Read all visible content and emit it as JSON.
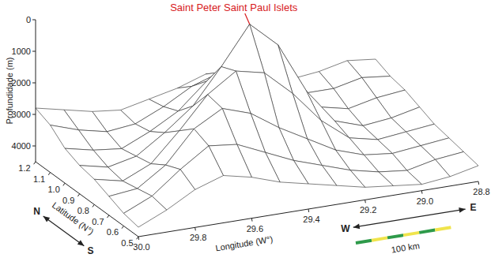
{
  "chart_data": {
    "type": "surface",
    "x_label": "Longitude (W°)",
    "y_label": "Latitude (N°)",
    "z_label": "Profundidade (m)",
    "x": [
      30,
      29.9,
      29.8,
      29.7,
      29.6,
      29.5,
      29.4,
      29.3,
      29.2,
      29.1,
      29,
      28.9,
      28.8
    ],
    "y": [
      0.5,
      0.6,
      0.7,
      0.8,
      0.9,
      1.0,
      1.1,
      1.2
    ],
    "z": [
      [
        4200,
        3800,
        3300,
        3000,
        3200,
        3500,
        3700,
        3900,
        4100,
        4200,
        4300,
        4200,
        4000
      ],
      [
        4100,
        3700,
        3000,
        2400,
        2500,
        2900,
        3300,
        3600,
        3900,
        4100,
        4200,
        4000,
        3900
      ],
      [
        3900,
        3800,
        3200,
        2200,
        1700,
        2000,
        2600,
        3100,
        3600,
        3900,
        4000,
        3900,
        3800
      ],
      [
        3700,
        3900,
        3500,
        2600,
        1600,
        1000,
        1200,
        2000,
        3000,
        3700,
        3900,
        3800,
        3700
      ],
      [
        3600,
        3800,
        3600,
        3000,
        2300,
        1200,
        0,
        800,
        2400,
        3500,
        3800,
        3700,
        3500
      ],
      [
        3400,
        3600,
        3700,
        3300,
        2800,
        2000,
        1300,
        1500,
        2600,
        3400,
        3600,
        3400,
        3300
      ],
      [
        3000,
        3300,
        3500,
        3400,
        3000,
        2500,
        2200,
        2400,
        2900,
        3300,
        3300,
        3100,
        3200
      ],
      [
        2800,
        3000,
        3200,
        3300,
        3100,
        2900,
        2600,
        2700,
        3000,
        3200,
        3100,
        2900,
        3000
      ]
    ],
    "xlim": [
      30,
      28.8
    ],
    "xticks": [
      {
        "value": 30,
        "label": "30.0"
      },
      29.8,
      29.6,
      29.4,
      29.2,
      {
        "value": 29,
        "label": "29.0"
      },
      28.8
    ],
    "ylim": [
      0.5,
      1.2
    ],
    "yticks": [
      0.5,
      0.6,
      0.7,
      0.8,
      0.9,
      {
        "value": 1,
        "label": "1.0"
      },
      1.1,
      1.2
    ],
    "zlim": [
      0,
      4500
    ],
    "zticks": [
      0,
      1000,
      2000,
      3000,
      4000
    ],
    "annotations": [
      {
        "text": "Saint Peter Saint Paul Islets",
        "x": 29.4,
        "y": 0.9,
        "color": "#d7191c"
      }
    ],
    "compass": {
      "lat": [
        "N",
        "S"
      ],
      "lon": [
        "W",
        "E"
      ]
    },
    "scale_bar": {
      "label": "100 km"
    }
  }
}
